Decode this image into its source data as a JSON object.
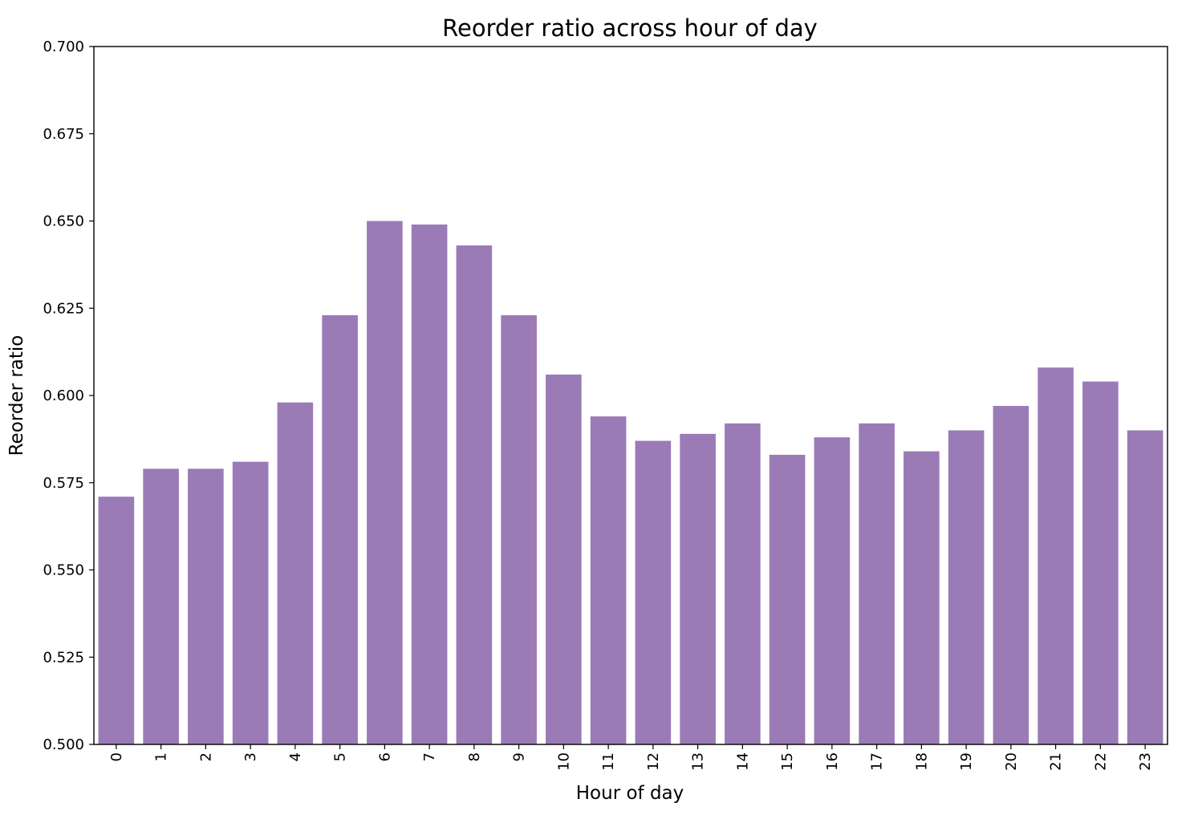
{
  "chart_data": {
    "type": "bar",
    "title": "Reorder ratio across hour of day",
    "xlabel": "Hour of day",
    "ylabel": "Reorder ratio",
    "categories": [
      "0",
      "1",
      "2",
      "3",
      "4",
      "5",
      "6",
      "7",
      "8",
      "9",
      "10",
      "11",
      "12",
      "13",
      "14",
      "15",
      "16",
      "17",
      "18",
      "19",
      "20",
      "21",
      "22",
      "23"
    ],
    "values": [
      0.571,
      0.579,
      0.579,
      0.581,
      0.598,
      0.623,
      0.65,
      0.649,
      0.643,
      0.623,
      0.606,
      0.594,
      0.587,
      0.589,
      0.592,
      0.583,
      0.588,
      0.592,
      0.584,
      0.59,
      0.597,
      0.608,
      0.604,
      0.59
    ],
    "ylim": [
      0.5,
      0.7
    ],
    "yticks": [
      "0.500",
      "0.525",
      "0.550",
      "0.575",
      "0.600",
      "0.625",
      "0.650",
      "0.675",
      "0.700"
    ],
    "bar_color": "#9a7bb6",
    "grid": false,
    "legend": "none"
  }
}
